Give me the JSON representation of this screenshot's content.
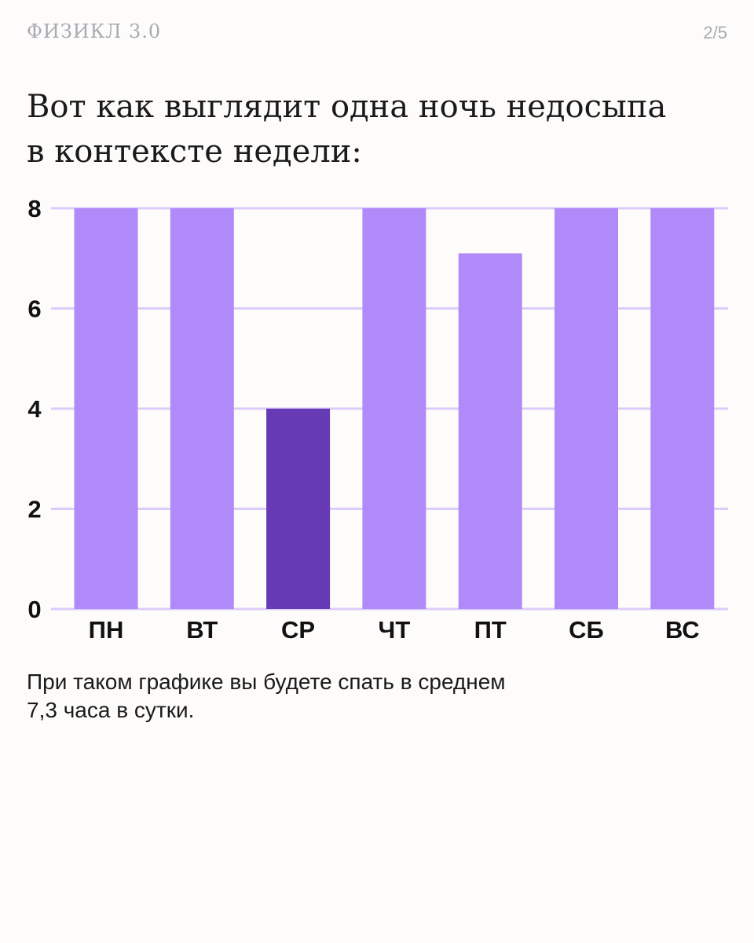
{
  "header": {
    "brand": "ФИЗИКЛ 3.0",
    "page_counter": "2/5"
  },
  "headline": {
    "line1": "Вот как выглядит одна ночь недосыпа",
    "line2": "в контексте недели:"
  },
  "caption": {
    "line1": "При таком графике вы будете спать в среднем",
    "line2": "7,3 часа в сутки."
  },
  "colors": {
    "bar": "#b08af8",
    "bar_highlight": "#6639b5",
    "grid": "#dccbfb",
    "tick_text": "#111111"
  },
  "chart_data": {
    "type": "bar",
    "categories": [
      "ПН",
      "ВТ",
      "СР",
      "ЧТ",
      "ПТ",
      "СБ",
      "ВС"
    ],
    "values": [
      8,
      8,
      4,
      8,
      7.1,
      8,
      8
    ],
    "highlight_index": 2,
    "title": "",
    "xlabel": "",
    "ylabel": "",
    "ylim": [
      0,
      8
    ],
    "yticks": [
      0,
      2,
      4,
      6,
      8
    ],
    "grid": true
  }
}
